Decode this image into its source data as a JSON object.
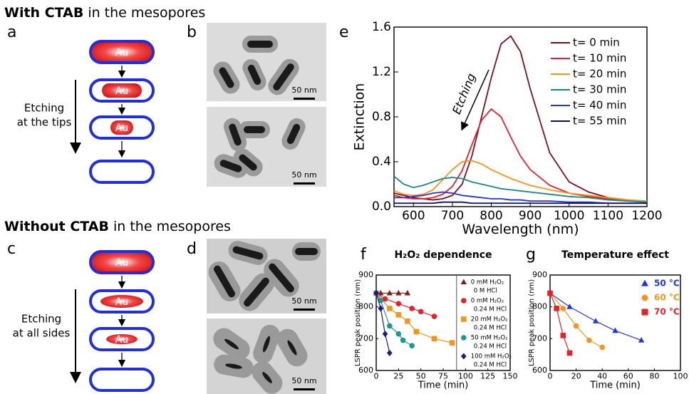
{
  "figure": {
    "heading_with": {
      "bold": "With CTAB",
      "rest": "in the mesopores"
    },
    "heading_without": {
      "bold": "Without CTAB",
      "rest": "in the mesopores"
    },
    "panel_labels": [
      "a",
      "b",
      "c",
      "d",
      "e",
      "f",
      "g"
    ],
    "particle_label": "Au",
    "etching_tips": [
      "Etching",
      "at the tips"
    ],
    "etching_sides": [
      "Etching",
      "at all sides"
    ],
    "scale_bar": "50 nm"
  },
  "chart_data": [
    {
      "type": "line",
      "xlabel": "Wavelength (nm)",
      "ylabel": "Extinction",
      "annotation": "Etching",
      "legend": "upper right",
      "x": [
        550,
        575,
        600,
        625,
        650,
        675,
        700,
        725,
        750,
        775,
        800,
        825,
        850,
        875,
        900,
        950,
        1000,
        1050,
        1100,
        1150,
        1200
      ],
      "xlim": [
        550,
        1200
      ],
      "xticks": [
        600,
        700,
        800,
        900,
        1000,
        1100,
        1200
      ],
      "ylim": [
        0,
        1.6
      ],
      "yticks": [
        {
          "value": 0,
          "label": "0.0"
        },
        0.4,
        0.8,
        1.2,
        1.6
      ],
      "series": [
        {
          "name": "t= 0 min",
          "color": "#7b1020",
          "values": [
            0.12,
            0.1,
            0.08,
            0.07,
            0.06,
            0.07,
            0.1,
            0.2,
            0.45,
            0.8,
            1.15,
            1.45,
            1.52,
            1.38,
            1.05,
            0.48,
            0.22,
            0.13,
            0.08,
            0.06,
            0.04
          ]
        },
        {
          "name": "t= 10 min",
          "color": "#e8202a",
          "values": [
            0.1,
            0.08,
            0.07,
            0.07,
            0.08,
            0.11,
            0.18,
            0.32,
            0.55,
            0.77,
            0.87,
            0.8,
            0.62,
            0.45,
            0.33,
            0.19,
            0.12,
            0.09,
            0.07,
            0.05,
            0.04
          ]
        },
        {
          "name": "t= 20 min",
          "color": "#f7941d",
          "values": [
            0.14,
            0.11,
            0.1,
            0.11,
            0.15,
            0.24,
            0.33,
            0.4,
            0.41,
            0.38,
            0.33,
            0.29,
            0.25,
            0.22,
            0.19,
            0.15,
            0.12,
            0.1,
            0.08,
            0.06,
            0.05
          ]
        },
        {
          "name": "t= 30 min",
          "color": "#1a8a7a",
          "values": [
            0.27,
            0.2,
            0.17,
            0.19,
            0.22,
            0.25,
            0.26,
            0.25,
            0.22,
            0.2,
            0.18,
            0.16,
            0.15,
            0.14,
            0.13,
            0.11,
            0.09,
            0.08,
            0.06,
            0.05,
            0.04
          ]
        },
        {
          "name": "t= 40 min",
          "color": "#2233dd",
          "values": [
            0.08,
            0.08,
            0.09,
            0.1,
            0.12,
            0.13,
            0.12,
            0.1,
            0.09,
            0.08,
            0.07,
            0.07,
            0.06,
            0.06,
            0.05,
            0.05,
            0.04,
            0.04,
            0.03,
            0.03,
            0.03
          ]
        },
        {
          "name": "t= 55 min",
          "color": "#0a0a7a",
          "values": [
            0.03,
            0.03,
            0.03,
            0.03,
            0.03,
            0.04,
            0.04,
            0.04,
            0.03,
            0.03,
            0.03,
            0.03,
            0.03,
            0.03,
            0.03,
            0.03,
            0.03,
            0.03,
            0.03,
            0.03,
            0.03
          ]
        }
      ]
    },
    {
      "type": "scatter",
      "title": "H₂O₂ dependence",
      "xlabel": "Time (min)",
      "ylabel": "LSPR peak position (nm)",
      "legend": "upper right",
      "xlim": [
        0,
        150
      ],
      "xticks": [
        0,
        25,
        50,
        75,
        100,
        125,
        150
      ],
      "ylim": [
        600,
        900
      ],
      "yticks": [
        600,
        700,
        800,
        900
      ],
      "divider_x": 90,
      "series": [
        {
          "name": "0 mM H₂O₂",
          "acid": "0 M HCl",
          "color": "#8b1a1a",
          "marker": "triangle",
          "x": [
            0,
            5,
            15,
            25,
            35
          ],
          "values": [
            843,
            843,
            843,
            843,
            843
          ]
        },
        {
          "name": "0 mM H₂O₂",
          "acid": "0.24 M HCl",
          "color": "#e8202a",
          "marker": "circle",
          "x": [
            0,
            10,
            25,
            40,
            50,
            65
          ],
          "values": [
            843,
            825,
            810,
            795,
            785,
            770
          ]
        },
        {
          "name": "20 mM H₂O₂",
          "acid": "0.24 M HCl",
          "color": "#f7941d",
          "marker": "square",
          "x": [
            0,
            15,
            25,
            35,
            45,
            65,
            85
          ],
          "values": [
            843,
            795,
            775,
            755,
            722,
            700,
            687
          ]
        },
        {
          "name": "50 mM H₂O₂",
          "acid": "0.24 M HCl",
          "color": "#1a9a8a",
          "marker": "circle",
          "x": [
            0,
            5,
            15,
            25,
            30,
            40
          ],
          "values": [
            843,
            820,
            740,
            715,
            695,
            678
          ]
        },
        {
          "name": "100 mM H₂O₂",
          "acid": "0.24 M HCl",
          "color": "#1a1a8a",
          "marker": "diamond",
          "x": [
            0,
            5,
            10,
            15
          ],
          "values": [
            843,
            795,
            715,
            655
          ]
        }
      ]
    },
    {
      "type": "scatter",
      "title": "Temperature effect",
      "xlabel": "Time (min)",
      "ylabel": "LSPR peak position (nm)",
      "legend": "upper right",
      "xlim": [
        0,
        100
      ],
      "xticks": [
        0,
        20,
        40,
        60,
        80,
        100
      ],
      "ylim": [
        600,
        900
      ],
      "yticks": [
        600,
        700,
        800,
        900
      ],
      "series": [
        {
          "name": "50 °C",
          "color": "#2233ee",
          "marker": "triangle",
          "x": [
            0,
            15,
            35,
            50,
            70
          ],
          "values": [
            843,
            800,
            755,
            725,
            695
          ]
        },
        {
          "name": "60 °C",
          "color": "#f7941d",
          "marker": "circle",
          "x": [
            0,
            10,
            20,
            30,
            40
          ],
          "values": [
            843,
            795,
            740,
            695,
            673
          ]
        },
        {
          "name": "70 °C",
          "color": "#e8202a",
          "marker": "square",
          "x": [
            0,
            5,
            10,
            15
          ],
          "values": [
            843,
            795,
            710,
            655
          ]
        }
      ]
    }
  ]
}
